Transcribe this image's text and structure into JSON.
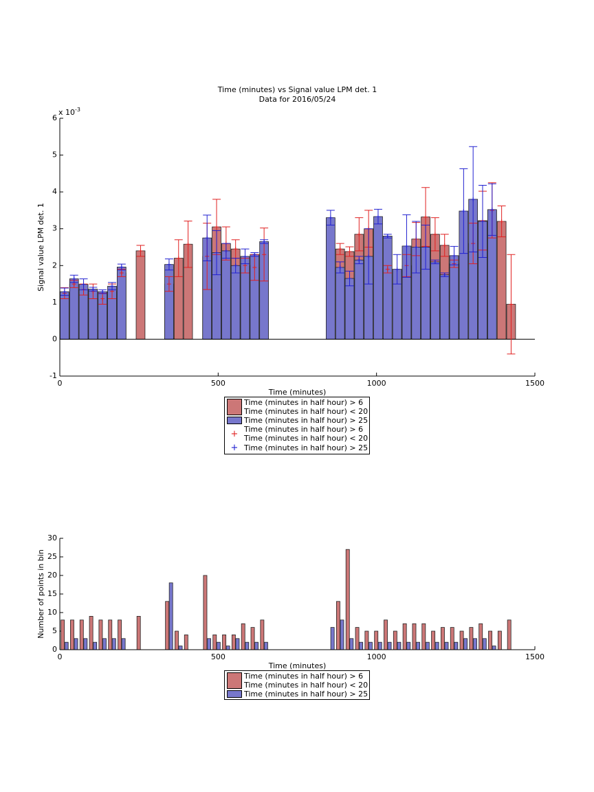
{
  "chart_data": [
    {
      "type": "bar",
      "title": "Time (minutes) vs Signal value LPM det. 1",
      "subtitle": "Data for 2016/05/24",
      "x_label": "Time (minutes)",
      "y_label": "Signal value LPM det. 1",
      "y_multiplier": "x 10",
      "y_multiplier_power": "-3",
      "xlim": [
        0,
        1500
      ],
      "xticks": [
        0,
        500,
        1000,
        1500
      ],
      "ylim": [
        -1,
        6
      ],
      "yticks": [
        -1,
        0,
        1,
        2,
        3,
        4,
        5,
        6
      ],
      "series": [
        {
          "name": "Time (minutes in half hour) > 6\nTime (minutes in half hour) < 20",
          "color": "#cc7777",
          "error_color": "#e02020",
          "x": [
            15,
            45,
            75,
            105,
            135,
            165,
            195,
            255,
            345,
            375,
            405,
            465,
            495,
            525,
            555,
            585,
            615,
            645,
            885,
            915,
            945,
            975,
            1035,
            1095,
            1125,
            1155,
            1185,
            1215,
            1245,
            1305,
            1335,
            1365,
            1395,
            1425
          ],
          "values": [
            1.25,
            1.5,
            1.35,
            1.3,
            1.1,
            1.3,
            1.8,
            2.4,
            1.5,
            2.2,
            2.58,
            2.25,
            3.05,
            2.6,
            2.45,
            2.0,
            1.95,
            2.3,
            2.45,
            2.38,
            2.85,
            3.0,
            1.9,
            2.0,
            2.72,
            3.32,
            2.85,
            2.55,
            2.05,
            2.6,
            3.22,
            3.5,
            3.2,
            0.95
          ],
          "errors": [
            0.15,
            0.1,
            0.15,
            0.2,
            0.15,
            0.2,
            0.1,
            0.15,
            0.2,
            0.5,
            0.63,
            0.9,
            0.75,
            0.45,
            0.25,
            0.2,
            0.35,
            0.72,
            0.15,
            0.13,
            0.45,
            0.5,
            0.1,
            0.3,
            0.45,
            0.8,
            0.45,
            0.3,
            0.1,
            0.55,
            0.8,
            0.75,
            0.42,
            1.35
          ]
        },
        {
          "name": "Time (minutes in half hour) > 25",
          "color": "#7777cc",
          "error_color": "#2020d0",
          "x": [
            15,
            45,
            75,
            105,
            135,
            165,
            195,
            345,
            465,
            495,
            525,
            555,
            585,
            615,
            645,
            855,
            885,
            915,
            945,
            975,
            1005,
            1035,
            1065,
            1095,
            1125,
            1155,
            1185,
            1215,
            1245,
            1275,
            1305,
            1335,
            1365
          ],
          "values": [
            1.29,
            1.64,
            1.49,
            1.36,
            1.29,
            1.44,
            1.96,
            2.03,
            2.75,
            2.35,
            2.4,
            2.0,
            2.25,
            2.3,
            2.65,
            3.3,
            1.95,
            1.65,
            2.15,
            2.25,
            3.33,
            2.8,
            1.9,
            2.53,
            2.5,
            2.5,
            2.1,
            1.75,
            2.27,
            3.48,
            3.8,
            3.2,
            3.52
          ],
          "errors": [
            0.1,
            0.1,
            0.15,
            0.05,
            0.05,
            0.1,
            0.08,
            0.15,
            0.62,
            0.6,
            0.2,
            0.2,
            0.2,
            0.05,
            0.05,
            0.2,
            0.15,
            0.2,
            0.1,
            0.75,
            0.2,
            0.05,
            0.4,
            0.85,
            0.7,
            0.6,
            0.05,
            0.05,
            0.25,
            1.15,
            1.43,
            0.98,
            0.7
          ]
        }
      ]
    },
    {
      "type": "bar",
      "x_label": "Time (minutes)",
      "y_label": "Number of points in bin",
      "xlim": [
        0,
        1500
      ],
      "xticks": [
        0,
        500,
        1000,
        1500
      ],
      "ylim": [
        0,
        30
      ],
      "yticks": [
        0,
        5,
        10,
        15,
        20,
        25,
        30
      ],
      "series": [
        {
          "name": "Time (minutes in half hour) > 6\nTime (minutes in half hour) < 20",
          "color": "#cc7777",
          "x": [
            15,
            45,
            75,
            105,
            135,
            165,
            195,
            255,
            345,
            375,
            405,
            465,
            495,
            525,
            555,
            585,
            615,
            645,
            885,
            915,
            945,
            975,
            1005,
            1035,
            1065,
            1095,
            1125,
            1155,
            1185,
            1215,
            1245,
            1275,
            1305,
            1335,
            1365,
            1395,
            1425
          ],
          "values": [
            8,
            8,
            8,
            9,
            8,
            8,
            8,
            9,
            13,
            5,
            4,
            20,
            4,
            4,
            4,
            7,
            6,
            8,
            13,
            27,
            6,
            5,
            5,
            8,
            5,
            7,
            7,
            7,
            5,
            6,
            6,
            5,
            6,
            7,
            5,
            5,
            8
          ]
        },
        {
          "name": "Time (minutes in half hour) > 25",
          "color": "#7777cc",
          "x": [
            15,
            45,
            75,
            105,
            135,
            165,
            195,
            345,
            375,
            465,
            495,
            525,
            555,
            585,
            615,
            645,
            855,
            885,
            915,
            945,
            975,
            1005,
            1035,
            1065,
            1095,
            1125,
            1155,
            1185,
            1215,
            1245,
            1275,
            1305,
            1335,
            1365
          ],
          "values": [
            2,
            3,
            3,
            2,
            3,
            3,
            3,
            18,
            1,
            3,
            2,
            1,
            3,
            2,
            2,
            2,
            6,
            8,
            3,
            2,
            2,
            2,
            2,
            2,
            2,
            2,
            2,
            2,
            2,
            2,
            3,
            3,
            3,
            1
          ]
        }
      ]
    }
  ]
}
